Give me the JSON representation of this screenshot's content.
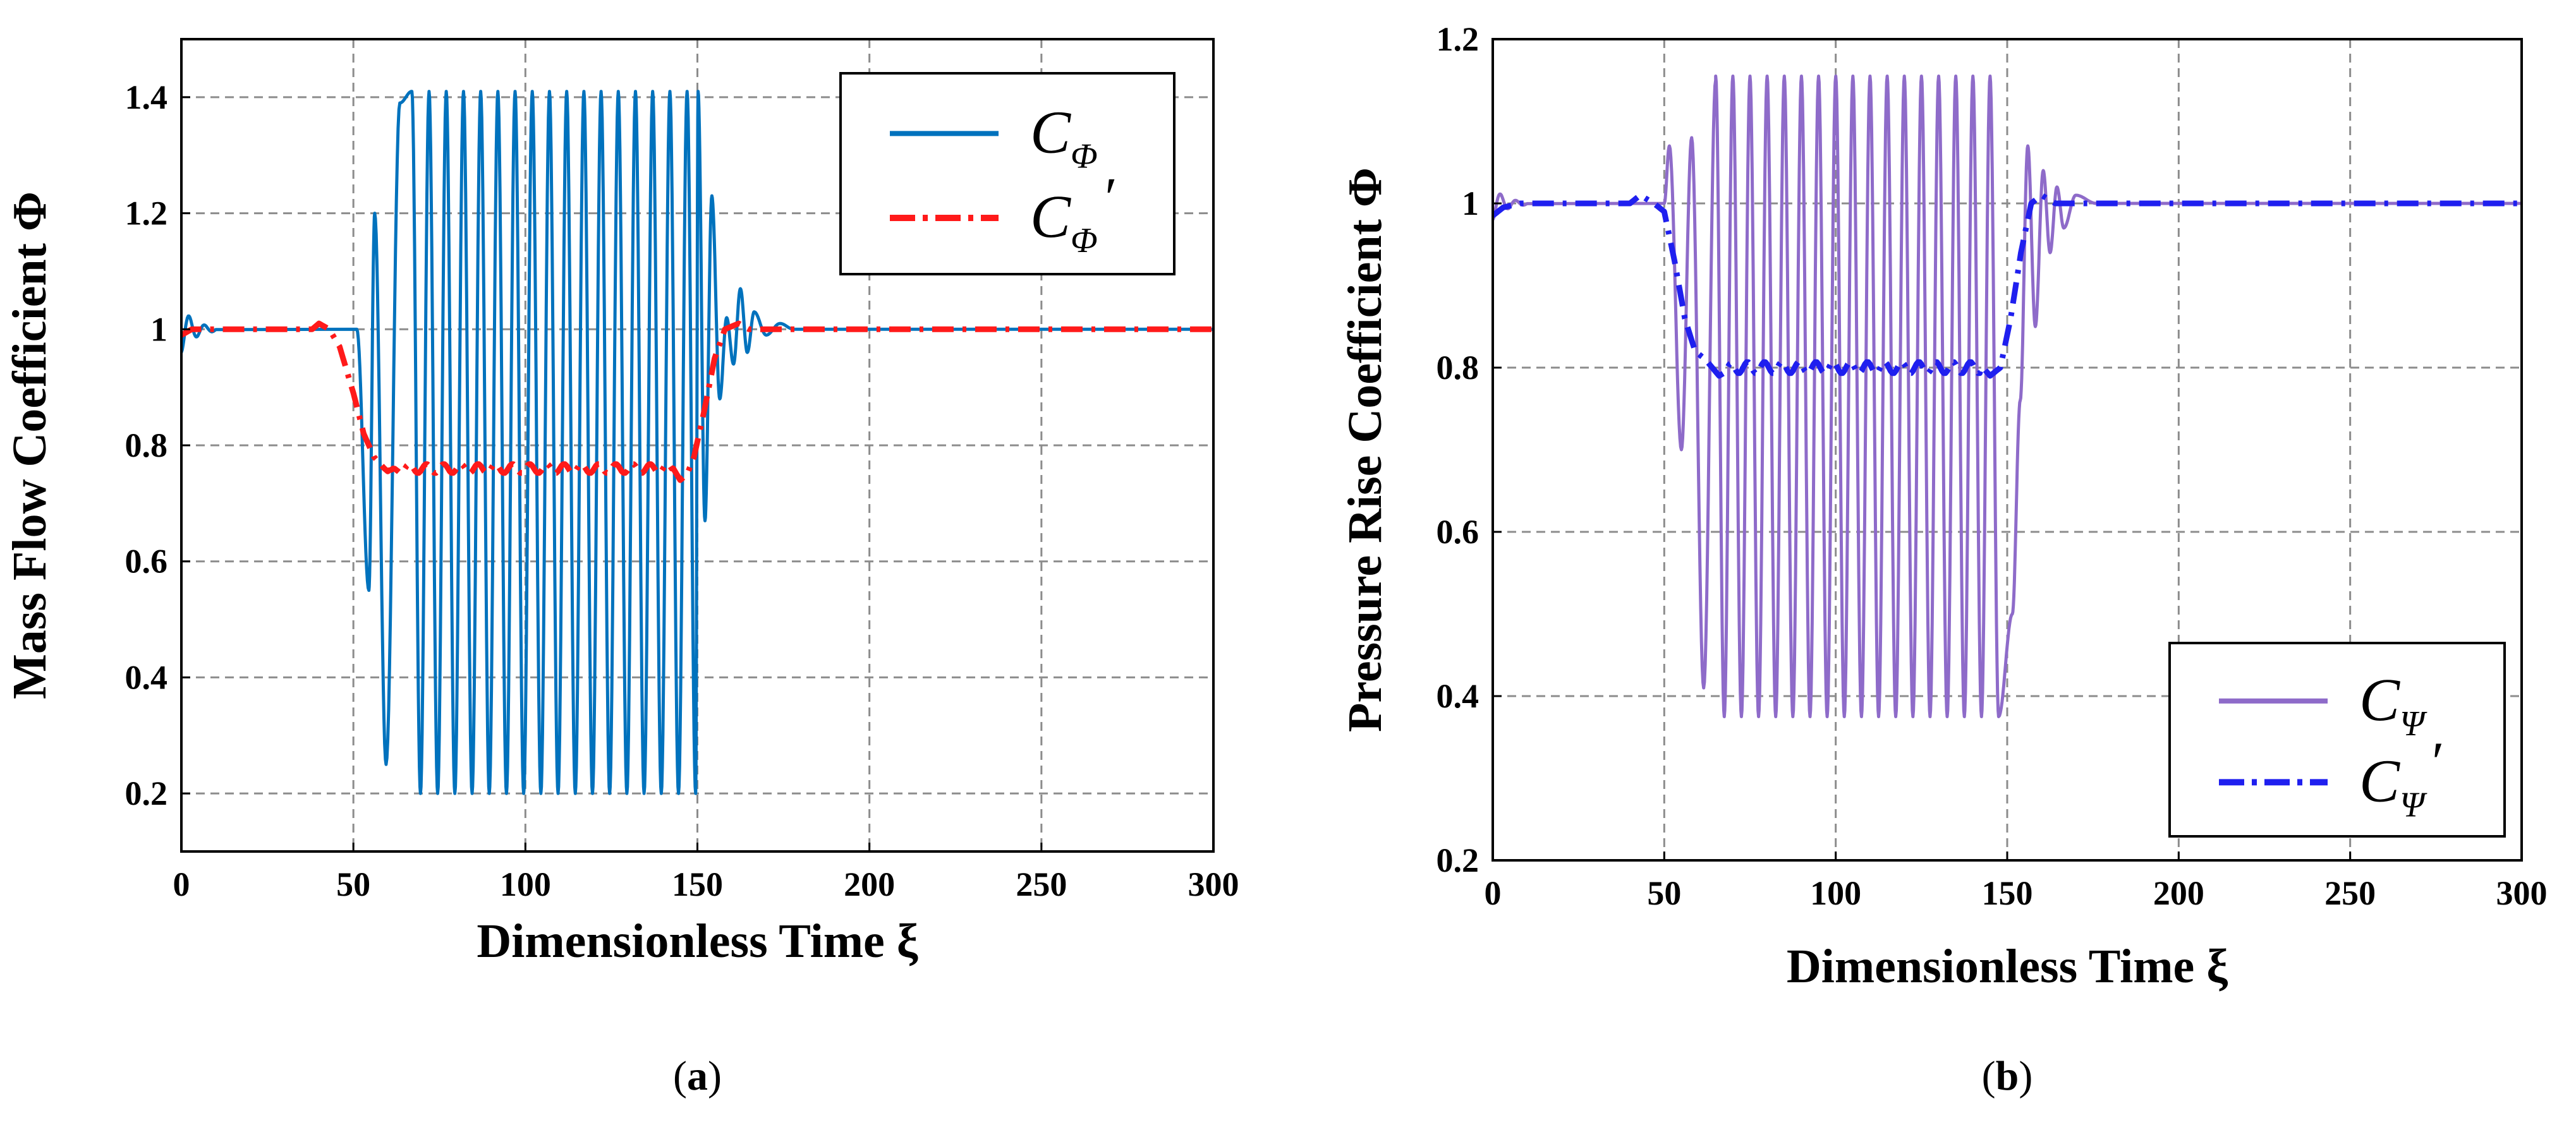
{
  "colors": {
    "c_phi": "#0072BD",
    "c_phi_prime": "#FF1A1A",
    "c_psi": "#8E6BC9",
    "c_psi_prime": "#1F1FEF",
    "grid": "#8c8c8c"
  },
  "chart_data": [
    {
      "type": "line",
      "caption_letter": "a",
      "xlabel": "Dimensionless Time ξ",
      "ylabel": "Mass Flow Coefficient Φ",
      "xlim": [
        0,
        300
      ],
      "ylim": [
        0.1,
        1.5
      ],
      "xticks": [
        0,
        50,
        100,
        150,
        200,
        250,
        300
      ],
      "yticks": [
        0.2,
        0.4,
        0.6,
        0.8,
        1,
        1.2,
        1.4
      ],
      "ytick_labels": [
        "0.2",
        "0.4",
        "0.6",
        "0.8",
        "1",
        "1.2",
        "1.4"
      ],
      "grid": true,
      "legend_position": "top-right",
      "series": [
        {
          "name": "CΦ",
          "legend_base": "C",
          "legend_sub": "Φ",
          "legend_prime": "",
          "style": "solid",
          "kind": "oscillation",
          "params": {
            "baseline": 1.0,
            "start_ripple": {
              "t_end": 10,
              "amp": 0.04,
              "period": 4.5
            },
            "surge_start": 51,
            "first_peaks": [
              [
                54.5,
                0.55
              ],
              [
                56.2,
                1.2
              ],
              [
                59.5,
                0.25
              ],
              [
                63.5,
                1.39
              ]
            ],
            "period": 5.0,
            "first_full_max": 67,
            "upper": 1.41,
            "lower": 0.2,
            "surge_end": 151,
            "after": [
              [
                150.2,
                1.41
              ],
              [
                152.2,
                0.67
              ],
              [
                154.2,
                1.23
              ],
              [
                156.5,
                0.88
              ],
              [
                158.5,
                1.02
              ],
              [
                160.5,
                0.94
              ],
              [
                162.5,
                1.07
              ],
              [
                164.5,
                0.96
              ],
              [
                166.5,
                1.03
              ],
              [
                170,
                0.99
              ],
              [
                174,
                1.01
              ],
              [
                178,
                1.0
              ]
            ]
          }
        },
        {
          "name": "CΦ′",
          "legend_base": "C",
          "legend_sub": "Φ",
          "legend_prime": "′",
          "style": "dashdot",
          "kind": "step",
          "params": {
            "baseline": 1.0,
            "level": 0.76,
            "points": [
              [
                0,
                0.99
              ],
              [
                3,
                1.0
              ],
              [
                30,
                1.0
              ],
              [
                38,
                1.0
              ],
              [
                40,
                1.01
              ],
              [
                43,
                1.0
              ],
              [
                46,
                0.97
              ],
              [
                50,
                0.89
              ],
              [
                53,
                0.82
              ],
              [
                56,
                0.78
              ],
              [
                59,
                0.76
              ],
              [
                61,
                0.75
              ],
              [
                63,
                0.76
              ],
              [
                143,
                0.76
              ],
              [
                145,
                0.74
              ],
              [
                147,
                0.75
              ],
              [
                149,
                0.78
              ],
              [
                152,
                0.86
              ],
              [
                155,
                0.95
              ],
              [
                158,
                1.0
              ],
              [
                162,
                1.01
              ],
              [
                165,
                1.0
              ],
              [
                300,
                1.0
              ]
            ],
            "wiggle": {
              "from": 60,
              "to": 142,
              "amp": 0.008,
              "period": 5.0
            }
          }
        }
      ]
    },
    {
      "type": "line",
      "caption_letter": "b",
      "xlabel": "Dimensionless Time ξ",
      "ylabel": "Pressure Rise Coefficient Φ",
      "xlim": [
        0,
        300
      ],
      "ylim": [
        0.2,
        1.2
      ],
      "xticks": [
        0,
        50,
        100,
        150,
        200,
        250,
        300
      ],
      "yticks": [
        0.2,
        0.4,
        0.6,
        0.8,
        1,
        1.2
      ],
      "ytick_labels": [
        "0.2",
        "0.4",
        "0.6",
        "0.8",
        "1",
        "1.2"
      ],
      "grid": true,
      "legend_position": "bottom-right",
      "series": [
        {
          "name": "CΨ",
          "legend_base": "C",
          "legend_sub": "Ψ",
          "legend_prime": "",
          "style": "solid",
          "kind": "oscillation",
          "params": {
            "baseline": 1.0,
            "start_ripple": {
              "t_end": 10,
              "amp": 0.02,
              "period": 4.5
            },
            "surge_start": 50,
            "first_peaks": [
              [
                51.5,
                1.07
              ],
              [
                55,
                0.7
              ],
              [
                58,
                1.08
              ],
              [
                61.5,
                0.41
              ],
              [
                65,
                1.15
              ]
            ],
            "period": 5.0,
            "first_full_max": 65,
            "upper": 1.155,
            "lower": 0.375,
            "surge_end": 150,
            "after": [
              [
                151.5,
                0.5
              ],
              [
                153.8,
                0.76
              ],
              [
                156,
                1.07
              ],
              [
                158.2,
                0.85
              ],
              [
                160.5,
                1.04
              ],
              [
                162.5,
                0.94
              ],
              [
                164.5,
                1.02
              ],
              [
                166.5,
                0.97
              ],
              [
                170,
                1.01
              ],
              [
                176,
                1.0
              ]
            ]
          }
        },
        {
          "name": "CΨ′",
          "legend_base": "C",
          "legend_sub": "Ψ",
          "legend_prime": "′",
          "style": "dashdot",
          "kind": "step",
          "params": {
            "baseline": 1.0,
            "level": 0.8,
            "points": [
              [
                0,
                0.985
              ],
              [
                3,
                0.995
              ],
              [
                8,
                1.0
              ],
              [
                40,
                1.0
              ],
              [
                43,
                1.01
              ],
              [
                47,
                1.0
              ],
              [
                50,
                0.99
              ],
              [
                53,
                0.93
              ],
              [
                56,
                0.86
              ],
              [
                59,
                0.82
              ],
              [
                62,
                0.81
              ],
              [
                66,
                0.79
              ],
              [
                70,
                0.8
              ],
              [
                143,
                0.8
              ],
              [
                145,
                0.79
              ],
              [
                148,
                0.8
              ],
              [
                151,
                0.86
              ],
              [
                154,
                0.94
              ],
              [
                157,
                1.0
              ],
              [
                160,
                1.01
              ],
              [
                164,
                1.0
              ],
              [
                300,
                1.0
              ]
            ],
            "wiggle": {
              "from": 68,
              "to": 142,
              "amp": 0.007,
              "period": 5.0
            }
          }
        }
      ]
    }
  ]
}
